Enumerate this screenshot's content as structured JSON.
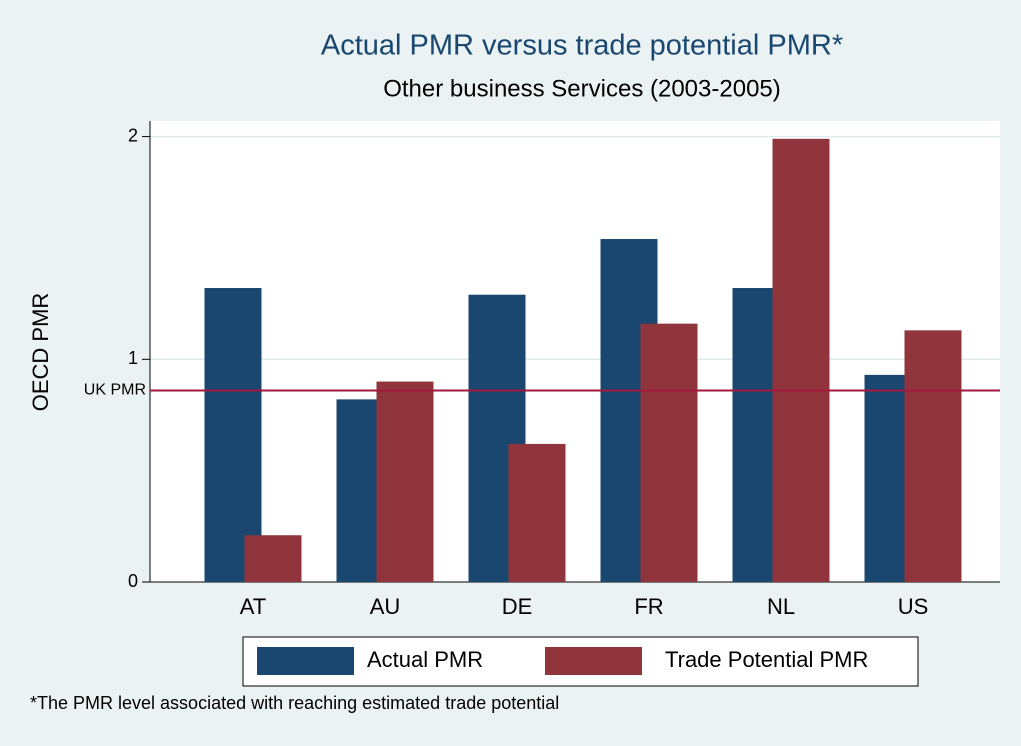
{
  "chart_data": {
    "type": "bar",
    "title": "Actual PMR versus trade potential PMR*",
    "subtitle": "Other business Services (2003-2005)",
    "y_label": "OECD PMR",
    "categories": [
      "AT",
      "AU",
      "DE",
      "FR",
      "NL",
      "US"
    ],
    "series": [
      {
        "name": "Actual PMR",
        "color": "#1a476f",
        "values": [
          1.32,
          0.82,
          1.29,
          1.54,
          1.32,
          0.93
        ]
      },
      {
        "name": "Trade Potential PMR",
        "color": "#90353b",
        "values": [
          0.21,
          0.9,
          0.62,
          1.16,
          1.99,
          1.13
        ]
      }
    ],
    "ylim": [
      0,
      2.07
    ],
    "yticks": [
      0,
      1,
      2
    ],
    "grid": true,
    "legend": "bottom",
    "reference_line": {
      "label": "UK PMR",
      "value": 0.86,
      "color": "#a3173f"
    },
    "footnote": "*The PMR level associated with reaching estimated trade potential"
  }
}
